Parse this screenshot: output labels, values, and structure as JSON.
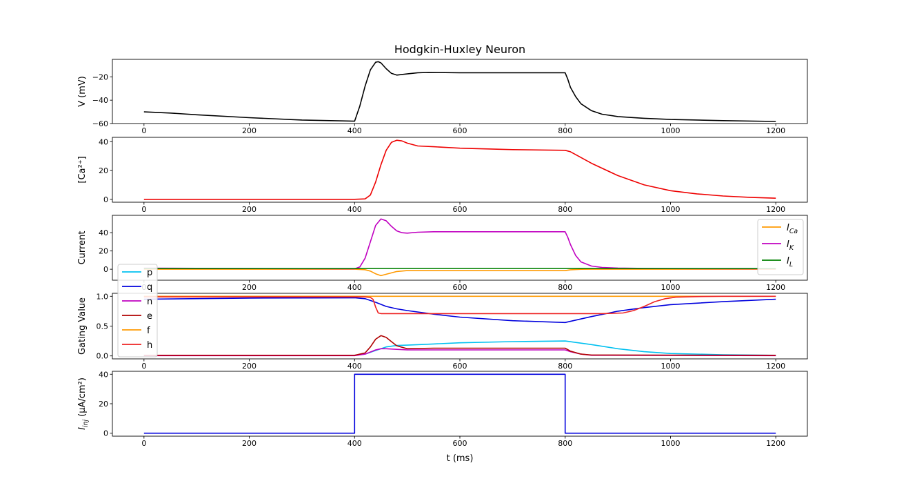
{
  "figure_title": "Hodgkin-Huxley Neuron",
  "xlabel": "t (ms)",
  "chart_data": [
    {
      "type": "line",
      "id": "voltage",
      "ylabel": "V (mV)",
      "xlim": [
        -60,
        1260
      ],
      "ylim": [
        -60,
        -5
      ],
      "yticks": [
        -60,
        -40,
        -20
      ],
      "xticks": [
        0,
        200,
        400,
        600,
        800,
        1000,
        1200
      ],
      "series": [
        {
          "color": "#000000",
          "x": [
            0,
            50,
            100,
            200,
            300,
            400,
            410,
            420,
            430,
            440,
            445,
            450,
            460,
            470,
            480,
            500,
            520,
            540,
            600,
            700,
            800,
            805,
            810,
            820,
            830,
            850,
            870,
            900,
            950,
            1000,
            1100,
            1200
          ],
          "y": [
            -50,
            -51,
            -52.5,
            -55,
            -57,
            -58,
            -45,
            -28,
            -14,
            -7.5,
            -7,
            -8,
            -13,
            -17,
            -18.5,
            -17.5,
            -16.5,
            -16.2,
            -16.5,
            -16.5,
            -16.5,
            -22,
            -29,
            -37,
            -43,
            -49,
            -52,
            -54,
            -55.5,
            -56.5,
            -57.5,
            -58.2
          ]
        }
      ]
    },
    {
      "type": "line",
      "id": "calcium",
      "ylabel": "[Ca²⁺]",
      "xlim": [
        -60,
        1260
      ],
      "ylim": [
        -2,
        43
      ],
      "yticks": [
        0,
        20,
        40
      ],
      "xticks": [
        0,
        200,
        400,
        600,
        800,
        1000,
        1200
      ],
      "series": [
        {
          "color": "#ee0000",
          "x": [
            0,
            200,
            400,
            420,
            430,
            440,
            450,
            460,
            470,
            480,
            490,
            500,
            520,
            550,
            600,
            700,
            800,
            810,
            820,
            850,
            900,
            950,
            1000,
            1050,
            1100,
            1150,
            1200
          ],
          "y": [
            0,
            0,
            0,
            0.3,
            3,
            12,
            24,
            34,
            39.5,
            41,
            40.5,
            39,
            37,
            36.5,
            35.5,
            34.5,
            34,
            33,
            31,
            25,
            16.5,
            10,
            6,
            3.8,
            2.3,
            1.4,
            0.8
          ]
        }
      ]
    },
    {
      "type": "line",
      "id": "current",
      "ylabel": "Current",
      "xlim": [
        -60,
        1260
      ],
      "ylim": [
        -12,
        59
      ],
      "yticks": [
        0,
        20,
        40
      ],
      "xticks": [
        0,
        200,
        400,
        600,
        800,
        1000,
        1200
      ],
      "legend": "right",
      "series": [
        {
          "name": "I_Ca",
          "color": "#ff9900",
          "x": [
            0,
            400,
            420,
            430,
            440,
            450,
            460,
            480,
            500,
            550,
            700,
            800,
            810,
            830,
            850,
            1200
          ],
          "y": [
            0,
            0,
            -0.5,
            -2,
            -5,
            -7,
            -5.5,
            -2.5,
            -1.5,
            -1.5,
            -1.5,
            -1.5,
            -0.6,
            -0.1,
            0,
            0
          ]
        },
        {
          "name": "I_K",
          "color": "#c000c0",
          "x": [
            0,
            100,
            200,
            300,
            400,
            410,
            420,
            430,
            440,
            450,
            460,
            470,
            480,
            490,
            500,
            520,
            550,
            600,
            700,
            800,
            805,
            810,
            820,
            830,
            850,
            870,
            900,
            950,
            1000,
            1200
          ],
          "y": [
            1.2,
            1.0,
            0.8,
            0.6,
            0.5,
            2.5,
            12,
            30,
            48,
            55,
            53,
            47,
            42,
            40,
            39.5,
            40.5,
            41,
            41,
            41,
            41,
            35,
            27,
            15,
            8,
            3.5,
            2,
            1.3,
            0.9,
            0.7,
            0.5
          ]
        },
        {
          "name": "I_L",
          "color": "#008000",
          "x": [
            0,
            400,
            440,
            800,
            900,
            1200
          ],
          "y": [
            0.8,
            0.8,
            0.9,
            0.9,
            0.8,
            0.8
          ]
        }
      ]
    },
    {
      "type": "line",
      "id": "gating",
      "ylabel": "Gating Value",
      "xlim": [
        -60,
        1260
      ],
      "ylim": [
        -0.05,
        1.05
      ],
      "yticks": [
        0.0,
        0.5,
        1.0
      ],
      "xticks": [
        0,
        200,
        400,
        600,
        800,
        1000,
        1200
      ],
      "legend": "left",
      "series": [
        {
          "name": "p",
          "color": "#00c0f0",
          "x": [
            0,
            400,
            420,
            440,
            460,
            480,
            500,
            550,
            600,
            700,
            800,
            850,
            900,
            950,
            1000,
            1100,
            1200
          ],
          "y": [
            0.01,
            0.01,
            0.03,
            0.09,
            0.15,
            0.175,
            0.18,
            0.2,
            0.22,
            0.24,
            0.25,
            0.19,
            0.12,
            0.07,
            0.04,
            0.02,
            0.01
          ]
        },
        {
          "name": "q",
          "color": "#0000dd",
          "x": [
            0,
            200,
            400,
            420,
            440,
            460,
            480,
            500,
            550,
            600,
            700,
            800,
            850,
            900,
            950,
            1000,
            1100,
            1200
          ],
          "y": [
            0.95,
            0.97,
            0.975,
            0.96,
            0.9,
            0.83,
            0.79,
            0.76,
            0.7,
            0.65,
            0.59,
            0.56,
            0.66,
            0.75,
            0.81,
            0.86,
            0.91,
            0.95
          ]
        },
        {
          "name": "n",
          "color": "#c000c0",
          "x": [
            0,
            400,
            420,
            440,
            450,
            460,
            480,
            500,
            800,
            810,
            830,
            850,
            1200
          ],
          "y": [
            0.005,
            0.005,
            0.03,
            0.1,
            0.12,
            0.12,
            0.11,
            0.1,
            0.1,
            0.07,
            0.03,
            0.01,
            0.005
          ]
        },
        {
          "name": "e",
          "color": "#b00000",
          "x": [
            0,
            400,
            420,
            430,
            440,
            450,
            460,
            470,
            480,
            500,
            550,
            700,
            800,
            810,
            830,
            850,
            1200
          ],
          "y": [
            0.01,
            0.01,
            0.05,
            0.15,
            0.28,
            0.34,
            0.31,
            0.24,
            0.17,
            0.12,
            0.13,
            0.13,
            0.13,
            0.08,
            0.03,
            0.015,
            0.01
          ]
        },
        {
          "name": "f",
          "color": "#ff9900",
          "x": [
            0,
            1200
          ],
          "y": [
            1.0,
            1.0
          ]
        },
        {
          "name": "h",
          "color": "#ee2222",
          "x": [
            0,
            420,
            430,
            435,
            440,
            445,
            450,
            800,
            870,
            910,
            930,
            950,
            970,
            990,
            1010,
            1050,
            1100,
            1200
          ],
          "y": [
            0.99,
            0.99,
            0.98,
            0.95,
            0.82,
            0.72,
            0.71,
            0.71,
            0.71,
            0.72,
            0.76,
            0.83,
            0.91,
            0.96,
            0.985,
            0.995,
            1.0,
            1.0
          ]
        }
      ]
    },
    {
      "type": "line",
      "id": "injected",
      "ylabel": "I_inj (μA/cm²)",
      "xlim": [
        -60,
        1260
      ],
      "ylim": [
        -2,
        42
      ],
      "yticks": [
        0,
        20,
        40
      ],
      "xticks": [
        0,
        200,
        400,
        600,
        800,
        1000,
        1200
      ],
      "series": [
        {
          "color": "#0000dd",
          "x": [
            0,
            400,
            400,
            800,
            800,
            1200
          ],
          "y": [
            0,
            0,
            40,
            40,
            0,
            0
          ]
        }
      ]
    }
  ]
}
